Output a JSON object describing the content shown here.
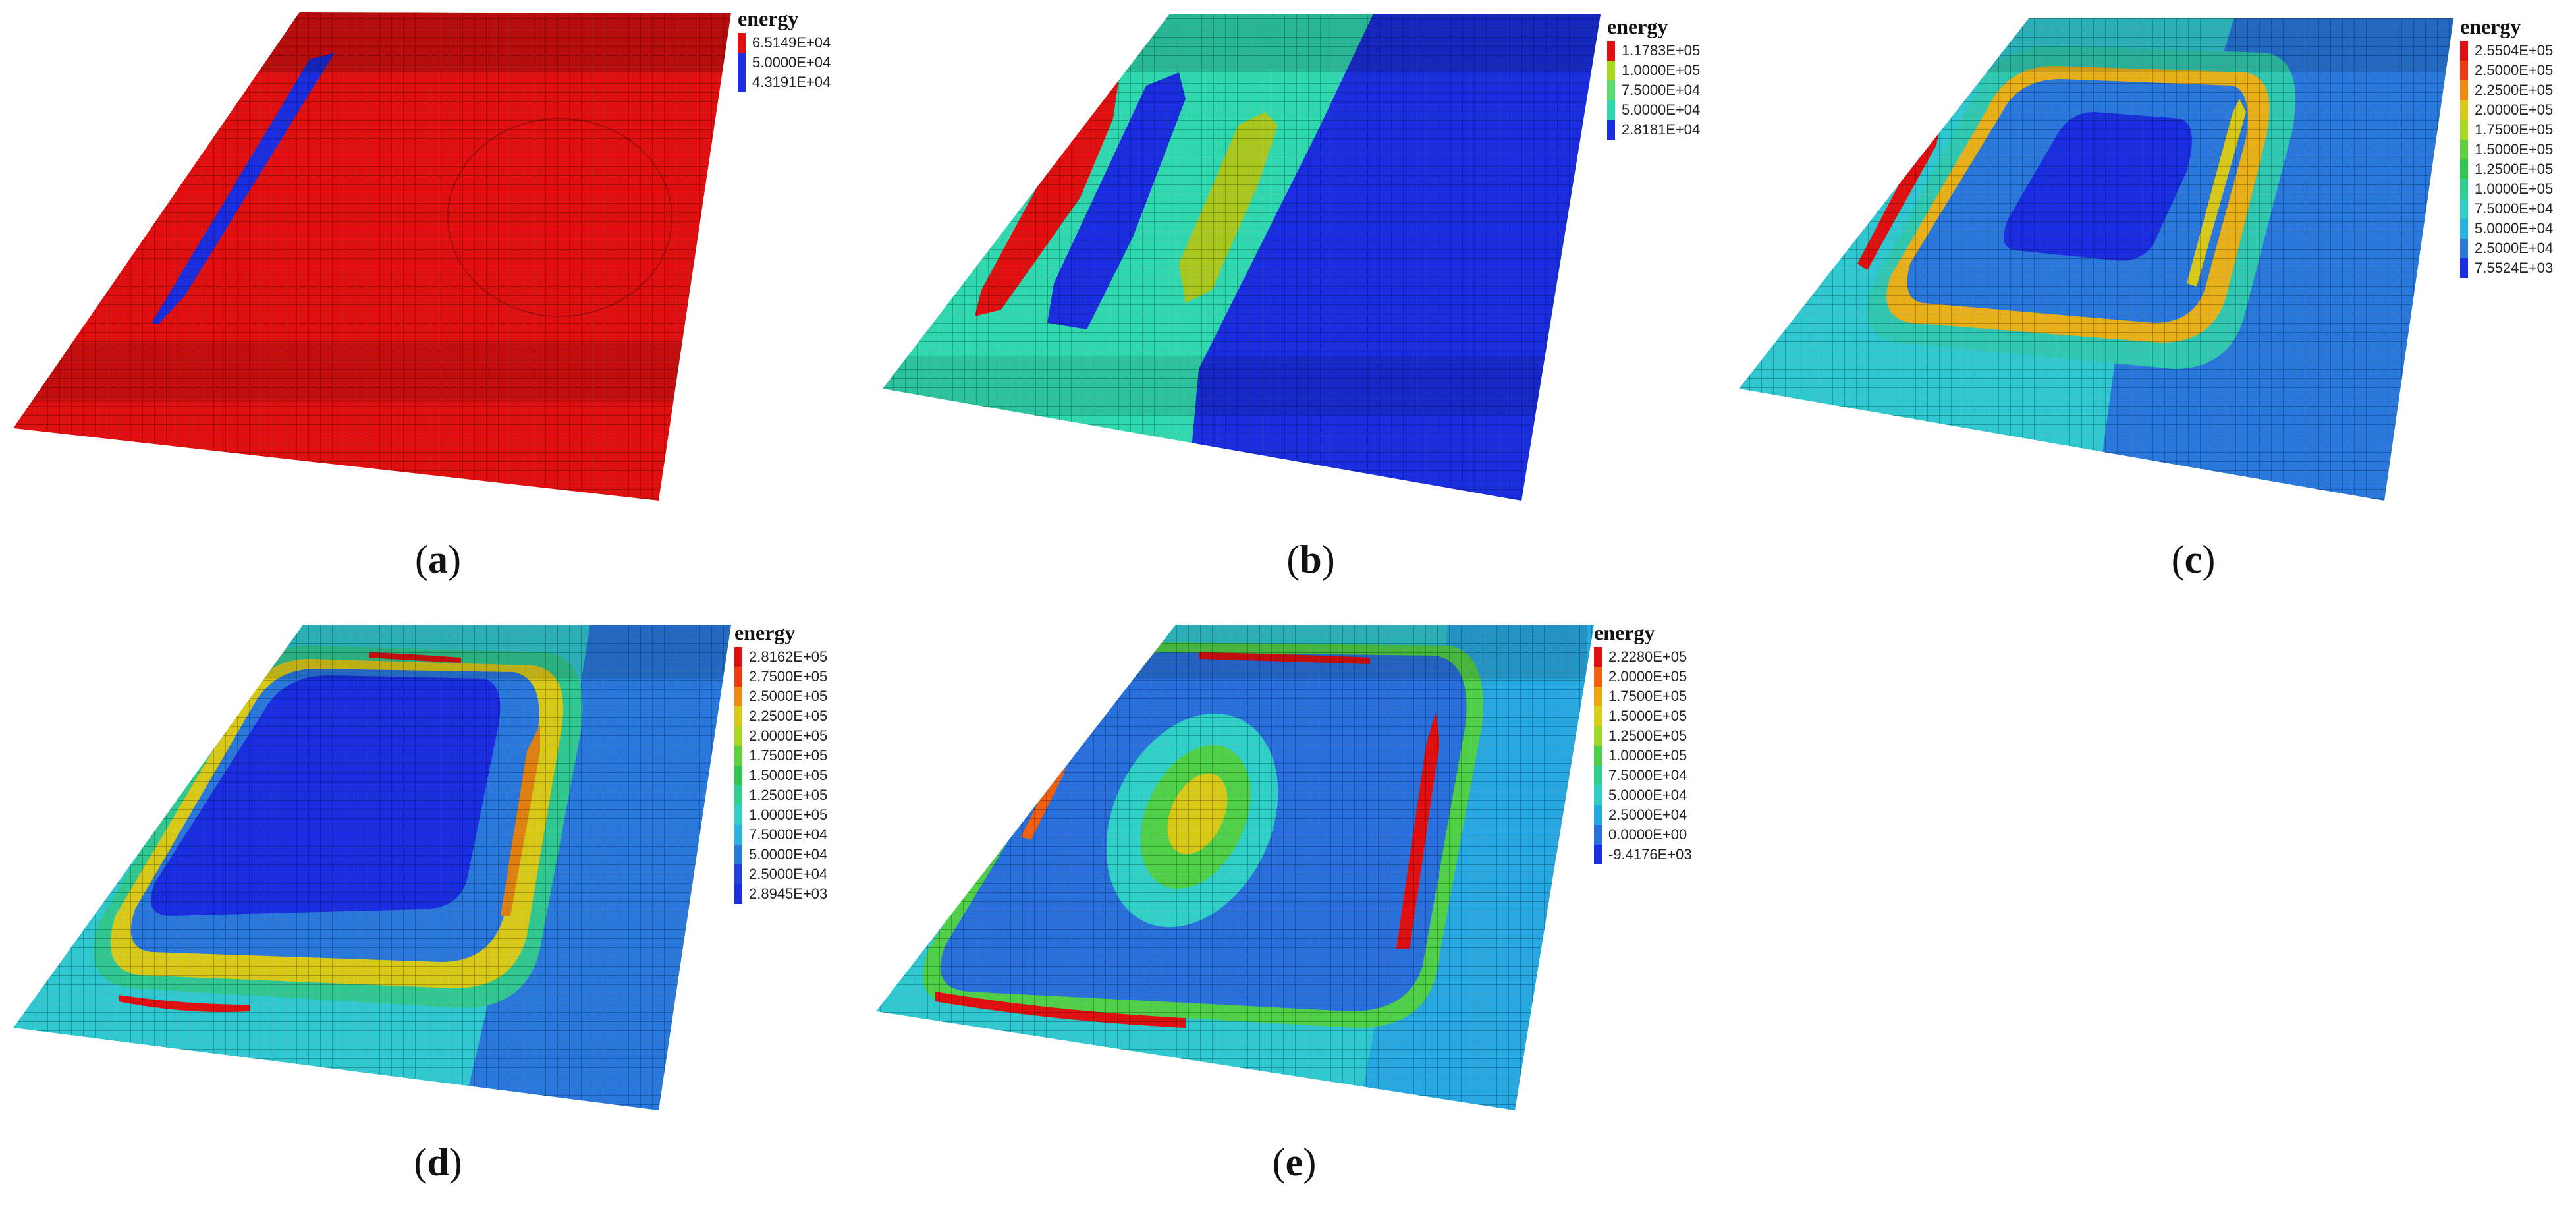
{
  "figure": {
    "legend_title": "energy",
    "panels": [
      {
        "id": "a",
        "caption_letter": "a",
        "legend": [
          {
            "label": "6.5149E+04",
            "color": "#e01010"
          },
          {
            "label": "5.0000E+04",
            "color": "#1a2ee0"
          },
          {
            "label": "4.3191E+04",
            "color": "#1a2ee0"
          }
        ]
      },
      {
        "id": "b",
        "caption_letter": "b",
        "legend": [
          {
            "label": "1.1783E+05",
            "color": "#e01010"
          },
          {
            "label": "1.0000E+05",
            "color": "#a8d820"
          },
          {
            "label": "7.5000E+04",
            "color": "#5cdc6c"
          },
          {
            "label": "5.0000E+04",
            "color": "#30d8b0"
          },
          {
            "label": "2.8181E+04",
            "color": "#1a2ee0"
          }
        ]
      },
      {
        "id": "c",
        "caption_letter": "c",
        "legend": [
          {
            "label": "2.5504E+05",
            "color": "#e01010"
          },
          {
            "label": "2.5000E+05",
            "color": "#ee3a10"
          },
          {
            "label": "2.2500E+05",
            "color": "#f08a10"
          },
          {
            "label": "2.0000E+05",
            "color": "#d8c818"
          },
          {
            "label": "1.7500E+05",
            "color": "#a8d820"
          },
          {
            "label": "1.5000E+05",
            "color": "#60d040"
          },
          {
            "label": "1.2500E+05",
            "color": "#30c850"
          },
          {
            "label": "1.0000E+05",
            "color": "#30d090"
          },
          {
            "label": "7.5000E+04",
            "color": "#30d0c8"
          },
          {
            "label": "5.0000E+04",
            "color": "#28b4e0"
          },
          {
            "label": "2.5000E+04",
            "color": "#2a78dc"
          },
          {
            "label": "7.5524E+03",
            "color": "#1a2ee0"
          }
        ]
      },
      {
        "id": "d",
        "caption_letter": "d",
        "legend": [
          {
            "label": "2.8162E+05",
            "color": "#e01010"
          },
          {
            "label": "2.7500E+05",
            "color": "#ee3a10"
          },
          {
            "label": "2.5000E+05",
            "color": "#f08a10"
          },
          {
            "label": "2.2500E+05",
            "color": "#d8c818"
          },
          {
            "label": "2.0000E+05",
            "color": "#a8d820"
          },
          {
            "label": "1.7500E+05",
            "color": "#60d040"
          },
          {
            "label": "1.5000E+05",
            "color": "#30c850"
          },
          {
            "label": "1.2500E+05",
            "color": "#30d090"
          },
          {
            "label": "1.0000E+05",
            "color": "#30d0c8"
          },
          {
            "label": "7.5000E+04",
            "color": "#28b4e0"
          },
          {
            "label": "5.0000E+04",
            "color": "#2a78dc"
          },
          {
            "label": "2.5000E+04",
            "color": "#2040dc"
          },
          {
            "label": "2.8945E+03",
            "color": "#1a2ee0"
          }
        ]
      },
      {
        "id": "e",
        "caption_letter": "e",
        "legend": [
          {
            "label": "2.2280E+05",
            "color": "#e01010"
          },
          {
            "label": "2.0000E+05",
            "color": "#f06010"
          },
          {
            "label": "1.7500E+05",
            "color": "#f0a810"
          },
          {
            "label": "1.5000E+05",
            "color": "#d8d018"
          },
          {
            "label": "1.2500E+05",
            "color": "#a0d828"
          },
          {
            "label": "1.0000E+05",
            "color": "#50d048"
          },
          {
            "label": "7.5000E+04",
            "color": "#30d090"
          },
          {
            "label": "5.0000E+04",
            "color": "#30d0c8"
          },
          {
            "label": "2.5000E+04",
            "color": "#28a8e0"
          },
          {
            "label": "0.0000E+00",
            "color": "#2a70dc"
          },
          {
            "label": "-9.4176E+03",
            "color": "#1a2ee0"
          }
        ]
      }
    ]
  }
}
